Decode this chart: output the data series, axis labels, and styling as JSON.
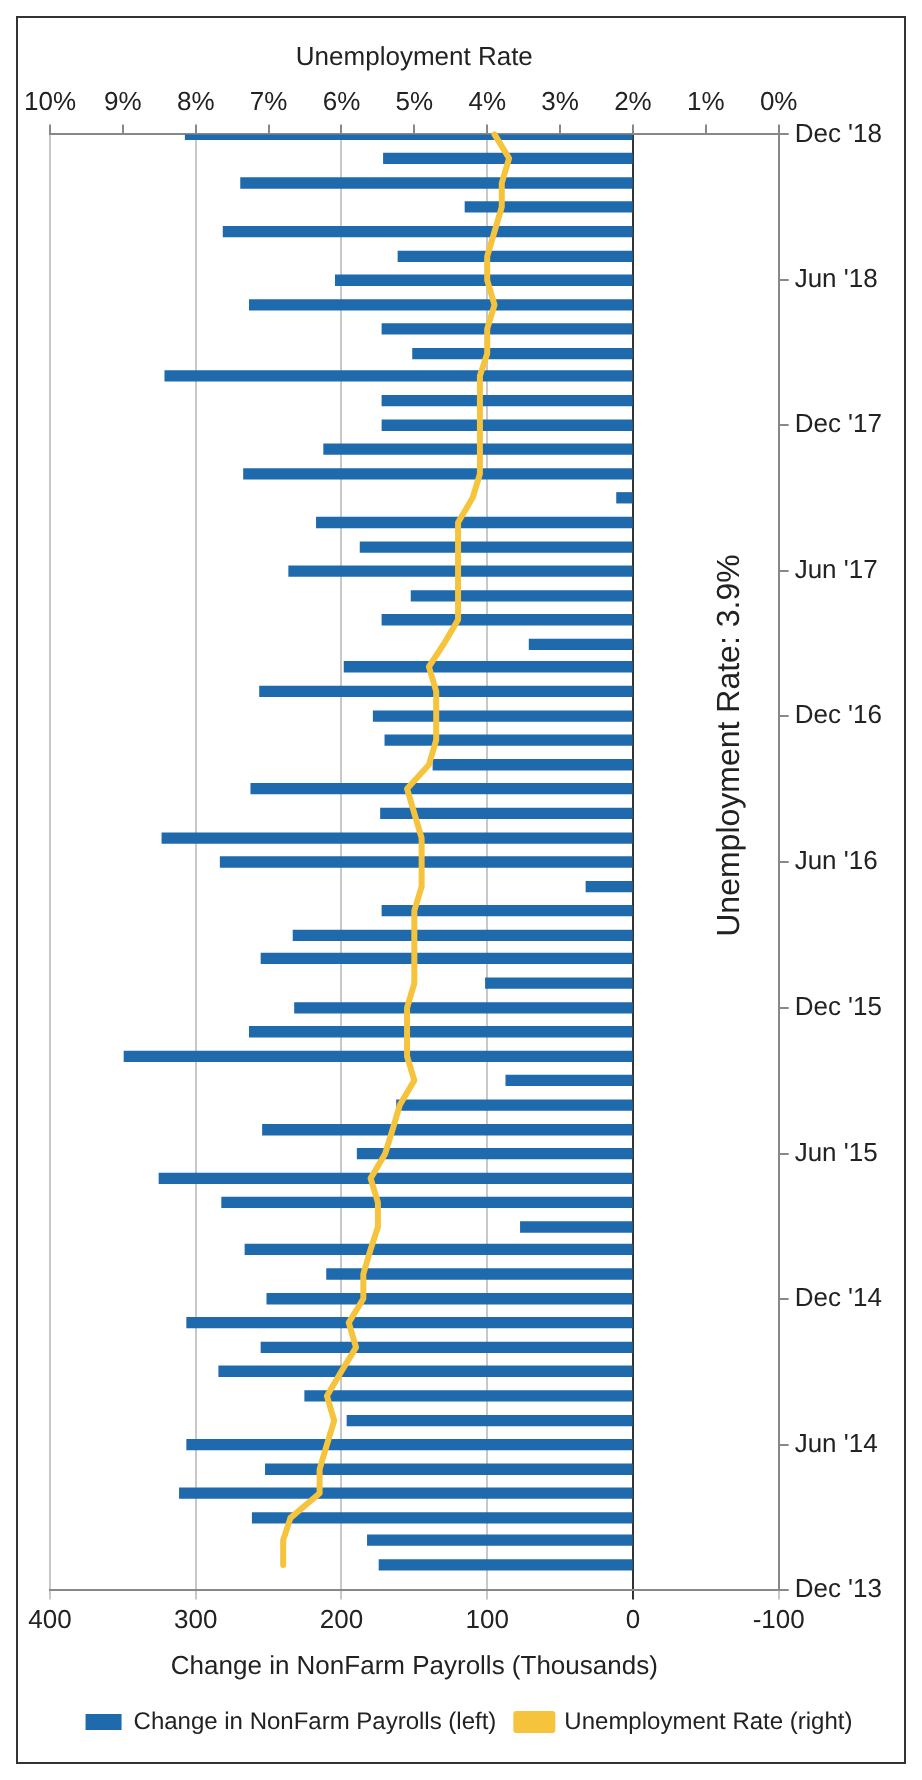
{
  "chart_data": {
    "type": "bar",
    "orientation": "horizontal",
    "xlabel": "Change in NonFarm Payrolls (Thousands)",
    "x2label": "Unemployment Rate",
    "x": [
      "2014-01",
      "2014-02",
      "2014-03",
      "2014-04",
      "2014-05",
      "2014-06",
      "2014-07",
      "2014-08",
      "2014-09",
      "2014-10",
      "2014-11",
      "2014-12",
      "2015-01",
      "2015-02",
      "2015-03",
      "2015-04",
      "2015-05",
      "2015-06",
      "2015-07",
      "2015-08",
      "2015-09",
      "2015-10",
      "2015-11",
      "2015-12",
      "2016-01",
      "2016-02",
      "2016-03",
      "2016-04",
      "2016-05",
      "2016-06",
      "2016-07",
      "2016-08",
      "2016-09",
      "2016-10",
      "2016-11",
      "2016-12",
      "2017-01",
      "2017-02",
      "2017-03",
      "2017-04",
      "2017-05",
      "2017-06",
      "2017-07",
      "2017-08",
      "2017-09",
      "2017-10",
      "2017-11",
      "2017-12",
      "2018-01",
      "2018-02",
      "2018-03",
      "2018-04",
      "2018-05",
      "2018-06",
      "2018-07",
      "2018-08",
      "2018-09",
      "2018-10",
      "2018-11",
      "2018-12"
    ],
    "series": [
      {
        "name": "Change in NonFarm Payrolls (left)",
        "color": "#1f6aad",
        "values": [
          174,
          182,
          261,
          311,
          252,
          306,
          196,
          225,
          284,
          255,
          306,
          251,
          210,
          266,
          77,
          282,
          325,
          189,
          254,
          162,
          87,
          349,
          263,
          232,
          101,
          255,
          233,
          172,
          32,
          283,
          323,
          173,
          262,
          137,
          170,
          178,
          256,
          198,
          71,
          172,
          152,
          236,
          187,
          217,
          11,
          267,
          212,
          172,
          172,
          321,
          151,
          172,
          263,
          204,
          161,
          281,
          115,
          269,
          171,
          307
        ]
      },
      {
        "name": "Unemployment Rate (right)",
        "type": "line",
        "axis": "x2",
        "color": "#f6c33c",
        "values": [
          6.8,
          6.8,
          6.7,
          6.3,
          6.3,
          6.2,
          6.1,
          6.2,
          6.0,
          5.8,
          5.9,
          5.7,
          5.7,
          5.6,
          5.5,
          5.5,
          5.6,
          5.4,
          5.3,
          5.2,
          5.0,
          5.1,
          5.1,
          5.1,
          5.0,
          5.0,
          5.0,
          5.0,
          4.9,
          4.9,
          4.9,
          5.0,
          5.1,
          4.8,
          4.7,
          4.7,
          4.7,
          4.8,
          4.6,
          4.4,
          4.4,
          4.4,
          4.4,
          4.4,
          4.2,
          4.1,
          4.1,
          4.1,
          4.1,
          4.1,
          4.0,
          4.0,
          3.9,
          4.0,
          4.0,
          3.9,
          3.8,
          3.8,
          3.7,
          3.9
        ]
      }
    ],
    "xlim": [
      400,
      -100
    ],
    "xticks": [
      400,
      300,
      200,
      100,
      0,
      -100
    ],
    "x2lim": [
      10,
      0
    ],
    "x2ticks": [
      {
        "value": 10,
        "label": "10%"
      },
      {
        "value": 9,
        "label": "9%"
      },
      {
        "value": 8,
        "label": "8%"
      },
      {
        "value": 7,
        "label": "7%"
      },
      {
        "value": 6,
        "label": "6%"
      },
      {
        "value": 5,
        "label": "5%"
      },
      {
        "value": 4,
        "label": "4%"
      },
      {
        "value": 3,
        "label": "3%"
      },
      {
        "value": 2,
        "label": "2%"
      },
      {
        "value": 1,
        "label": "1%"
      },
      {
        "value": 0,
        "label": "0%"
      }
    ],
    "ylim": [
      "2013-12",
      "2018-12"
    ],
    "yticks": [
      {
        "value": "2013-12",
        "label": "Dec '13"
      },
      {
        "value": "2014-06",
        "label": "Jun '14"
      },
      {
        "value": "2014-12",
        "label": "Dec '14"
      },
      {
        "value": "2015-06",
        "label": "Jun '15"
      },
      {
        "value": "2015-12",
        "label": "Dec '15"
      },
      {
        "value": "2016-06",
        "label": "Jun '16"
      },
      {
        "value": "2016-12",
        "label": "Dec '16"
      },
      {
        "value": "2017-06",
        "label": "Jun '17"
      },
      {
        "value": "2017-12",
        "label": "Dec '17"
      },
      {
        "value": "2018-06",
        "label": "Jun '18"
      },
      {
        "value": "2018-12",
        "label": "Dec '18"
      }
    ],
    "grid": "x",
    "legend": "bottom",
    "marker": "none",
    "line_style": "solid",
    "annotations": [
      "Unemployment Rate: 3.9%"
    ]
  }
}
